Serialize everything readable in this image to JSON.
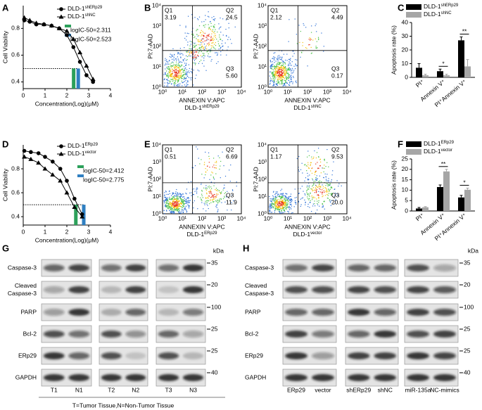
{
  "panel_labels": [
    "A",
    "B",
    "C",
    "D",
    "E",
    "F",
    "G",
    "H"
  ],
  "chart_data": [
    {
      "type": "line",
      "x_label": "Concentration(Log)(μM)",
      "y_label": "Cell Viability",
      "xlim": [
        0,
        4
      ],
      "xticks": [
        0,
        1,
        2,
        3,
        4
      ],
      "ylim": [
        0.35,
        0.97
      ],
      "yticks": [
        0.4,
        0.6,
        0.8
      ],
      "reference_line": 0.5,
      "series": [
        {
          "name": "DLD-1",
          "name_sup": "shERp29",
          "marker": "circle",
          "color": "#000000",
          "x": [
            0.05,
            0.3,
            0.6,
            0.95,
            1.3,
            1.65,
            2.0,
            2.3,
            2.6,
            2.9,
            3.2
          ],
          "values": [
            0.86,
            0.85,
            0.83,
            0.83,
            0.82,
            0.8,
            0.75,
            0.66,
            0.55,
            0.45,
            0.4
          ]
        },
        {
          "name": "DLD-1",
          "name_sup": "shNC",
          "marker": "triangle",
          "color": "#000000",
          "x": [
            0.05,
            0.3,
            0.6,
            0.95,
            1.3,
            1.65,
            2.0,
            2.3,
            2.6,
            2.9,
            3.2
          ],
          "values": [
            0.88,
            0.86,
            0.84,
            0.83,
            0.82,
            0.8,
            0.78,
            0.72,
            0.62,
            0.52,
            0.42
          ]
        }
      ],
      "annotations": [
        {
          "text": "logIC-50=2.311",
          "x": 2.311,
          "color": "#2ca05a"
        },
        {
          "text": "logIC-50=2.523",
          "x": 2.523,
          "color": "#2f7fc1"
        }
      ]
    },
    {
      "type": "bar",
      "y_label": "Apoptosis rate (%)",
      "categories": [
        "PI⁺",
        "Annexin V⁺",
        "PI⁺Annexin V⁺"
      ],
      "ylim": [
        0,
        40
      ],
      "yticks": [
        0,
        10,
        20,
        30,
        40
      ],
      "series": [
        {
          "name": "DLD-1",
          "name_sup": "shERp29",
          "color": "#000000",
          "values": [
            7,
            4.5,
            27
          ],
          "errors": [
            3,
            1.5,
            2.5
          ]
        },
        {
          "name": "DLD-1",
          "name_sup": "shNC",
          "color": "#a6a6a6",
          "values": [
            1.5,
            1.5,
            8
          ],
          "errors": [
            0.8,
            0.8,
            5
          ]
        }
      ],
      "significance": [
        null,
        "*",
        "**"
      ]
    },
    {
      "type": "line",
      "x_label": "Concentration(Log)(μM)",
      "y_label": "Cell Viability",
      "xlim": [
        0,
        4
      ],
      "xticks": [
        0,
        1,
        2,
        3,
        4
      ],
      "ylim": [
        0.33,
        1.0
      ],
      "yticks": [
        0.4,
        0.6,
        0.8
      ],
      "reference_line": 0.5,
      "series": [
        {
          "name": "DLD-1",
          "name_sup": "ERp29",
          "marker": "circle",
          "color": "#000000",
          "x": [
            0.05,
            0.35,
            0.7,
            1.0,
            1.35,
            1.7,
            2.0,
            2.35,
            2.7
          ],
          "values": [
            0.95,
            0.94,
            0.93,
            0.9,
            0.86,
            0.8,
            0.7,
            0.55,
            0.42
          ]
        },
        {
          "name": "DLD-1",
          "name_sup": "vector",
          "marker": "triangle",
          "color": "#000000",
          "x": [
            0.05,
            0.35,
            0.7,
            1.0,
            1.35,
            1.7,
            2.0,
            2.35,
            2.7
          ],
          "values": [
            0.9,
            0.88,
            0.85,
            0.8,
            0.75,
            0.7,
            0.6,
            0.48,
            0.4
          ]
        }
      ],
      "annotations": [
        {
          "text": "logIC-50=2.412",
          "x": 2.412,
          "color": "#2ca05a"
        },
        {
          "text": "logIC-50=2.775",
          "x": 2.775,
          "color": "#2f7fc1"
        }
      ]
    },
    {
      "type": "bar",
      "y_label": "Apoptosis rate (%)",
      "categories": [
        "PI⁺",
        "Annexin V⁺",
        "PI⁺Annexin V⁺"
      ],
      "ylim": [
        0,
        25
      ],
      "yticks": [
        0,
        5,
        10,
        15,
        20,
        25
      ],
      "series": [
        {
          "name": "DLD-1",
          "name_sup": "ERp29",
          "color": "#000000",
          "values": [
            1.2,
            11.5,
            6.5
          ],
          "errors": [
            0.5,
            1,
            1
          ]
        },
        {
          "name": "DLD-1",
          "name_sup": "vector",
          "color": "#a6a6a6",
          "values": [
            1.8,
            19,
            10.2
          ],
          "errors": [
            0.3,
            1,
            0.8
          ]
        }
      ],
      "significance": [
        null,
        "**",
        "*"
      ]
    }
  ],
  "flow_cytometry": {
    "x_label": "ANNEXIN V:APC",
    "y_label": "PI:7-AAD",
    "ticks": [
      "10⁰",
      "10¹",
      "10²",
      "10³",
      "10⁴"
    ],
    "panels": [
      {
        "sample": "DLD-1",
        "sample_sup": "shERp29",
        "quadrants": [
          {
            "name": "Q1",
            "value": "3.19"
          },
          {
            "name": "Q2",
            "value": "24.5"
          },
          {
            "name": "Q3",
            "value": "5.60"
          }
        ]
      },
      {
        "sample": "DLD-1",
        "sample_sup": "shNC",
        "quadrants": [
          {
            "name": "Q1",
            "value": "2.12"
          },
          {
            "name": "Q2",
            "value": "4.49"
          },
          {
            "name": "Q3",
            "value": "0.17"
          }
        ]
      },
      {
        "sample": "DLD-1",
        "sample_sup": "ERp29",
        "quadrants": [
          {
            "name": "Q1",
            "value": "0.51"
          },
          {
            "name": "Q2",
            "value": "6.69"
          },
          {
            "name": "Q3",
            "value": "11.9"
          }
        ]
      },
      {
        "sample": "DLD-1",
        "sample_sup": "vector",
        "quadrants": [
          {
            "name": "Q1",
            "value": "1.17"
          },
          {
            "name": "Q2",
            "value": "9.53"
          },
          {
            "name": "Q3",
            "value": "20.0"
          }
        ]
      }
    ]
  },
  "western_blots": [
    {
      "unit": "kDa",
      "proteins": [
        {
          "lines": [
            "Caspase-3"
          ],
          "kda": "35"
        },
        {
          "lines": [
            "Cleaved",
            "Caspase-3"
          ],
          "kda": "20"
        },
        {
          "lines": [
            "PARP"
          ],
          "kda": "100"
        },
        {
          "lines": [
            "Bcl-2"
          ],
          "kda": "25"
        },
        {
          "lines": [
            "ERp29"
          ],
          "kda": "25"
        },
        {
          "lines": [
            "GAPDH"
          ],
          "kda": "40"
        }
      ],
      "lanes": [
        "T1",
        "N1",
        "T2",
        "N2",
        "T3",
        "N3"
      ],
      "footnote": "T=Tumor Tissue,N=Non-Tumor Tissue"
    },
    {
      "unit": "kDa",
      "proteins": [
        {
          "lines": [
            "Caspase-3"
          ],
          "kda": "35"
        },
        {
          "lines": [
            "Cleaved",
            "Caspase-3"
          ],
          "kda": "20"
        },
        {
          "lines": [
            "PARP"
          ],
          "kda": "100"
        },
        {
          "lines": [
            "Bcl-2"
          ],
          "kda": "25"
        },
        {
          "lines": [
            "ERp29"
          ],
          "kda": "25"
        },
        {
          "lines": [
            "GAPDH"
          ],
          "kda": "40"
        }
      ],
      "lanes": [
        "ERp29",
        "vector",
        "shERp29",
        "shNC",
        "miR-135a",
        "NC-mimics"
      ]
    }
  ]
}
